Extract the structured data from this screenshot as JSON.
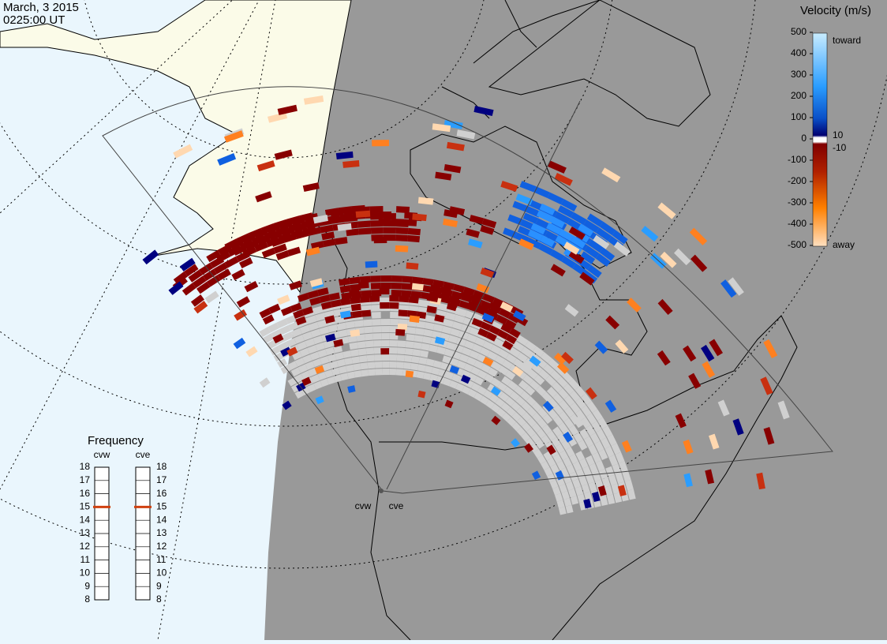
{
  "header": {
    "date": "March, 3 2015",
    "time": "0225:00 UT"
  },
  "colorbar": {
    "title": "Velocity (m/s)",
    "ticks": [
      500,
      400,
      300,
      200,
      100,
      0,
      -100,
      -200,
      -300,
      -400,
      -500
    ],
    "side_labels": [
      "toward",
      "10",
      "-10",
      "away"
    ]
  },
  "frequency": {
    "title": "Frequency",
    "radars": [
      {
        "name": "cvw",
        "selected": 15
      },
      {
        "name": "cve",
        "selected": 15
      }
    ],
    "ticks": [
      18,
      17,
      16,
      15,
      14,
      13,
      12,
      11,
      10,
      9,
      8
    ]
  }
}
